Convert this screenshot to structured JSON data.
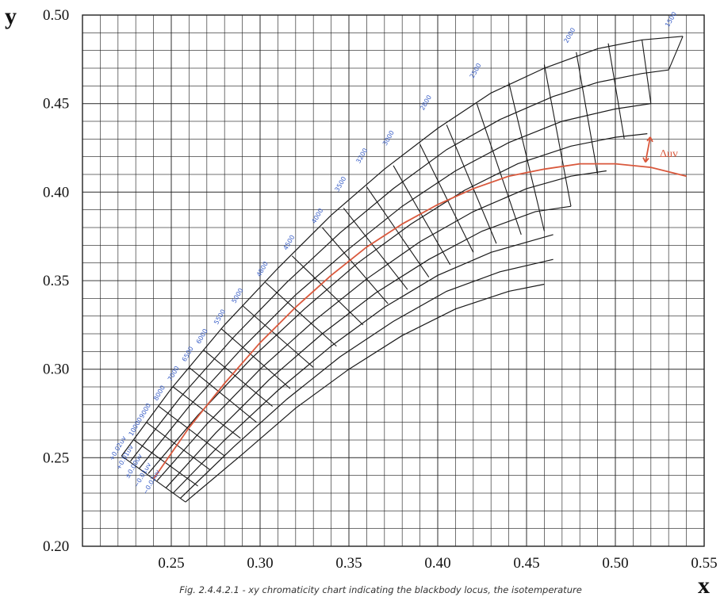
{
  "chart_data": {
    "type": "line",
    "title": "",
    "xlabel": "x",
    "ylabel": "y",
    "caption": "Fig. 2.4.4.2.1 - xy chromaticity chart indicating the blackbody locus, the isotemperature",
    "xlim": [
      0.2,
      0.55
    ],
    "ylim": [
      0.2,
      0.5
    ],
    "x_ticks": [
      "0.25",
      "0.30",
      "0.35",
      "0.40",
      "0.45",
      "0.50",
      "0.55"
    ],
    "y_ticks": [
      "0.50",
      "0.45",
      "0.40",
      "0.35",
      "0.30",
      "0.25",
      "0.20"
    ],
    "grid": true,
    "colors": {
      "locus": "#d9583c",
      "grid": "#222222",
      "iso_labels": "#3a5fc7"
    },
    "annotation": {
      "text": "Δuv",
      "x": 0.525,
      "y": 0.422
    },
    "series": [
      {
        "role": "blackbody-locus",
        "x": [
          0.24,
          0.26,
          0.28,
          0.3,
          0.32,
          0.34,
          0.36,
          0.38,
          0.4,
          0.42,
          0.44,
          0.46,
          0.48,
          0.5,
          0.52,
          0.54
        ],
        "y": [
          0.238,
          0.267,
          0.292,
          0.315,
          0.335,
          0.353,
          0.369,
          0.382,
          0.393,
          0.402,
          0.409,
          0.413,
          0.416,
          0.416,
          0.414,
          0.409
        ]
      }
    ],
    "duv_curves": [
      {
        "x": [
          0.222,
          0.25,
          0.28,
          0.31,
          0.34,
          0.37,
          0.4,
          0.43,
          0.46,
          0.49,
          0.515,
          0.538
        ],
        "y": [
          0.251,
          0.289,
          0.325,
          0.357,
          0.387,
          0.413,
          0.436,
          0.456,
          0.47,
          0.481,
          0.486,
          0.488
        ]
      },
      {
        "x": [
          0.227,
          0.255,
          0.285,
          0.315,
          0.345,
          0.375,
          0.405,
          0.435,
          0.465,
          0.49,
          0.515,
          0.53
        ],
        "y": [
          0.248,
          0.284,
          0.318,
          0.349,
          0.377,
          0.402,
          0.424,
          0.441,
          0.454,
          0.462,
          0.467,
          0.469
        ]
      },
      {
        "x": [
          0.232,
          0.26,
          0.29,
          0.32,
          0.35,
          0.38,
          0.41,
          0.44,
          0.47,
          0.5,
          0.52
        ],
        "y": [
          0.244,
          0.279,
          0.312,
          0.342,
          0.368,
          0.392,
          0.412,
          0.428,
          0.44,
          0.447,
          0.45
        ]
      },
      {
        "x": [
          0.237,
          0.265,
          0.295,
          0.325,
          0.355,
          0.385,
          0.415,
          0.445,
          0.475,
          0.5,
          0.518
        ],
        "y": [
          0.241,
          0.274,
          0.306,
          0.334,
          0.36,
          0.382,
          0.401,
          0.416,
          0.426,
          0.431,
          0.433
        ]
      },
      {
        "x": [
          0.242,
          0.27,
          0.3,
          0.33,
          0.36,
          0.39,
          0.42,
          0.45,
          0.475,
          0.495
        ],
        "y": [
          0.237,
          0.269,
          0.3,
          0.327,
          0.351,
          0.372,
          0.389,
          0.402,
          0.409,
          0.412
        ]
      },
      {
        "x": [
          0.247,
          0.275,
          0.305,
          0.335,
          0.365,
          0.395,
          0.425,
          0.455,
          0.475
        ],
        "y": [
          0.233,
          0.264,
          0.294,
          0.32,
          0.343,
          0.362,
          0.378,
          0.389,
          0.392
        ]
      },
      {
        "x": [
          0.251,
          0.28,
          0.31,
          0.34,
          0.37,
          0.4,
          0.43,
          0.465
        ],
        "y": [
          0.23,
          0.26,
          0.288,
          0.313,
          0.335,
          0.353,
          0.366,
          0.376
        ]
      },
      {
        "x": [
          0.255,
          0.285,
          0.315,
          0.345,
          0.375,
          0.405,
          0.435,
          0.465
        ],
        "y": [
          0.227,
          0.256,
          0.283,
          0.307,
          0.327,
          0.344,
          0.355,
          0.362
        ]
      },
      {
        "x": [
          0.258,
          0.29,
          0.32,
          0.35,
          0.38,
          0.41,
          0.44,
          0.46
        ],
        "y": [
          0.225,
          0.252,
          0.278,
          0.3,
          0.319,
          0.334,
          0.344,
          0.348
        ]
      }
    ],
    "isotemperature_lines": [
      {
        "x1": 0.222,
        "y1": 0.251,
        "x2": 0.258,
        "y2": 0.225
      },
      {
        "x1": 0.229,
        "y1": 0.26,
        "x2": 0.265,
        "y2": 0.234
      },
      {
        "x1": 0.236,
        "y1": 0.27,
        "x2": 0.272,
        "y2": 0.243
      },
      {
        "x1": 0.243,
        "y1": 0.279,
        "x2": 0.28,
        "y2": 0.251
      },
      {
        "x1": 0.251,
        "y1": 0.29,
        "x2": 0.289,
        "y2": 0.261
      },
      {
        "x1": 0.26,
        "y1": 0.301,
        "x2": 0.298,
        "y2": 0.27
      },
      {
        "x1": 0.268,
        "y1": 0.311,
        "x2": 0.307,
        "y2": 0.279
      },
      {
        "x1": 0.278,
        "y1": 0.323,
        "x2": 0.317,
        "y2": 0.289
      },
      {
        "x1": 0.29,
        "y1": 0.336,
        "x2": 0.33,
        "y2": 0.301
      },
      {
        "x1": 0.303,
        "y1": 0.349,
        "x2": 0.343,
        "y2": 0.313
      },
      {
        "x1": 0.318,
        "y1": 0.364,
        "x2": 0.358,
        "y2": 0.325
      },
      {
        "x1": 0.335,
        "y1": 0.38,
        "x2": 0.372,
        "y2": 0.337
      },
      {
        "x1": 0.347,
        "y1": 0.391,
        "x2": 0.383,
        "y2": 0.345
      },
      {
        "x1": 0.36,
        "y1": 0.403,
        "x2": 0.395,
        "y2": 0.352
      },
      {
        "x1": 0.375,
        "y1": 0.415,
        "x2": 0.407,
        "y2": 0.359
      },
      {
        "x1": 0.39,
        "y1": 0.427,
        "x2": 0.42,
        "y2": 0.366
      },
      {
        "x1": 0.405,
        "y1": 0.438,
        "x2": 0.433,
        "y2": 0.371
      },
      {
        "x1": 0.422,
        "y1": 0.45,
        "x2": 0.447,
        "y2": 0.376
      },
      {
        "x1": 0.44,
        "y1": 0.462,
        "x2": 0.46,
        "y2": 0.378
      },
      {
        "x1": 0.46,
        "y1": 0.472,
        "x2": 0.475,
        "y2": 0.392
      },
      {
        "x1": 0.478,
        "y1": 0.479,
        "x2": 0.49,
        "y2": 0.41
      },
      {
        "x1": 0.496,
        "y1": 0.484,
        "x2": 0.505,
        "y2": 0.43
      },
      {
        "x1": 0.515,
        "y1": 0.486,
        "x2": 0.52,
        "y2": 0.45
      },
      {
        "x1": 0.538,
        "y1": 0.488,
        "x2": 0.53,
        "y2": 0.469
      }
    ],
    "isotemperature_labels": [
      {
        "text": "+0.02uv",
        "x": 0.217,
        "y": 0.248,
        "angle": -60
      },
      {
        "text": "+0.01uv",
        "x": 0.221,
        "y": 0.243,
        "angle": -60
      },
      {
        "text": "±0.00uv",
        "x": 0.226,
        "y": 0.238,
        "angle": -60
      },
      {
        "text": "−0.01uv",
        "x": 0.231,
        "y": 0.233,
        "angle": -60
      },
      {
        "text": "−0.02uv",
        "x": 0.236,
        "y": 0.229,
        "angle": -60
      },
      {
        "text": "10000",
        "x": 0.228,
        "y": 0.262,
        "angle": -60
      },
      {
        "text": "9000",
        "x": 0.234,
        "y": 0.272,
        "angle": -60
      },
      {
        "text": "8000",
        "x": 0.242,
        "y": 0.282,
        "angle": -60
      },
      {
        "text": "7000",
        "x": 0.25,
        "y": 0.293,
        "angle": -60
      },
      {
        "text": "6500",
        "x": 0.258,
        "y": 0.304,
        "angle": -60
      },
      {
        "text": "6000",
        "x": 0.266,
        "y": 0.314,
        "angle": -60
      },
      {
        "text": "5500",
        "x": 0.276,
        "y": 0.325,
        "angle": -60
      },
      {
        "text": "5000",
        "x": 0.286,
        "y": 0.337,
        "angle": -60
      },
      {
        "text": "4800",
        "x": 0.3,
        "y": 0.352,
        "angle": -60
      },
      {
        "text": "4500",
        "x": 0.315,
        "y": 0.367,
        "angle": -60
      },
      {
        "text": "4000",
        "x": 0.331,
        "y": 0.382,
        "angle": -60
      },
      {
        "text": "3500",
        "x": 0.344,
        "y": 0.4,
        "angle": -60
      },
      {
        "text": "3200",
        "x": 0.356,
        "y": 0.416,
        "angle": -60
      },
      {
        "text": "3000",
        "x": 0.371,
        "y": 0.426,
        "angle": -60
      },
      {
        "text": "2800",
        "x": 0.392,
        "y": 0.446,
        "angle": -60
      },
      {
        "text": "2500",
        "x": 0.42,
        "y": 0.464,
        "angle": -60
      },
      {
        "text": "2000",
        "x": 0.473,
        "y": 0.484,
        "angle": -60
      },
      {
        "text": "1500",
        "x": 0.53,
        "y": 0.493,
        "angle": -60
      }
    ]
  }
}
